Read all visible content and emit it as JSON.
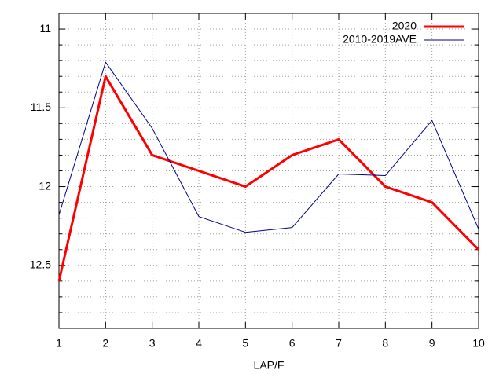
{
  "chart_data": {
    "type": "line",
    "xlabel": "LAP/F",
    "x": [
      1,
      2,
      3,
      4,
      5,
      6,
      7,
      8,
      9,
      10
    ],
    "series": [
      {
        "name": "2020",
        "color": "#ff0000",
        "width": 3,
        "values": [
          12.6,
          11.3,
          11.8,
          11.9,
          12.0,
          11.8,
          11.7,
          12.0,
          12.1,
          12.4
        ]
      },
      {
        "name": "2010-2019AVE",
        "color": "#00008b",
        "width": 1,
        "values": [
          12.18,
          11.21,
          11.63,
          12.19,
          12.29,
          12.26,
          11.92,
          11.93,
          11.58,
          12.27
        ]
      }
    ],
    "xlim": [
      1,
      10
    ],
    "xticks": [
      1,
      2,
      3,
      4,
      5,
      6,
      7,
      8,
      9,
      10
    ],
    "ylim": [
      12.9,
      10.9
    ],
    "yticks": [
      11,
      11.5,
      12,
      12.5
    ],
    "yminorticks": [
      11.1,
      11.2,
      11.3,
      11.4,
      11.6,
      11.7,
      11.8,
      11.9,
      12.1,
      12.2,
      12.3,
      12.4,
      12.6,
      12.7,
      12.8
    ],
    "grid": true,
    "legend": "top-right"
  }
}
